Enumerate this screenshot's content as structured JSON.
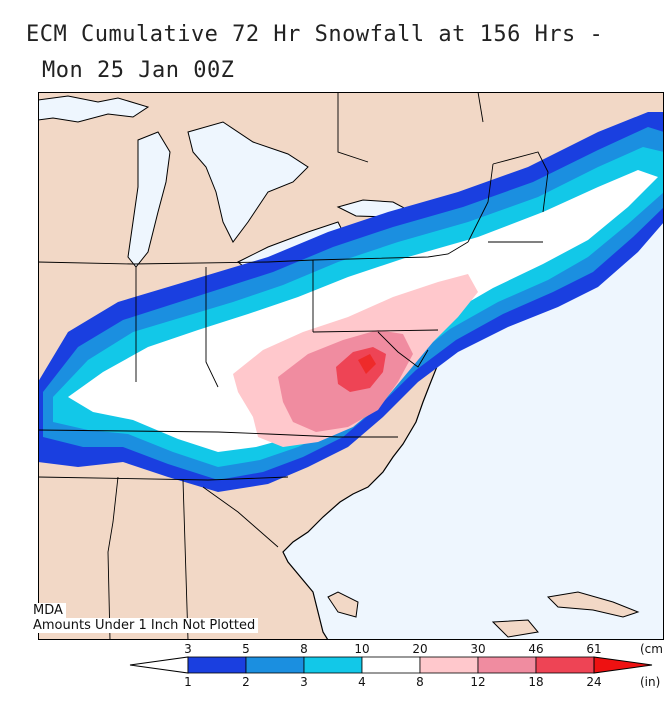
{
  "title_line1": "ECM Cumulative 72 Hr Snowfall at 156 Hrs -",
  "title_line2": "Mon 25 Jan 00Z",
  "source_label": "MDA",
  "note": "Amounts Under 1 Inch Not Plotted",
  "legend": {
    "cm_unit": "(cm",
    "in_unit": "(in)",
    "cm_ticks": [
      "3",
      "5",
      "8",
      "10",
      "20",
      "30",
      "46",
      "61"
    ],
    "in_ticks": [
      "1",
      "2",
      "3",
      "4",
      "8",
      "12",
      "18",
      "24"
    ],
    "colors": [
      "#1a3fe0",
      "#1b8fe0",
      "#12c8e8",
      "#ffffff",
      "#ffc8cc",
      "#f08ca0",
      "#ee4455"
    ]
  },
  "colors": {
    "ocean": "#eef6fe",
    "land": "#f2d8c6",
    "lakes": "#eef6fe",
    "max_snow": "#ee2a2a"
  }
}
